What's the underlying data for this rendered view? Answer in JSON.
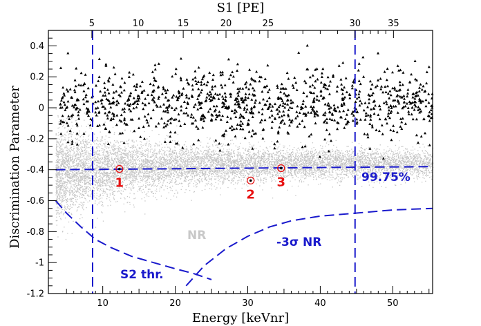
{
  "chart_data": {
    "type": "scatter",
    "xlabel": "Energy [keVnr]",
    "ylabel": "Discrimination Parameter",
    "top_axis_label": "S1 [PE]",
    "xlim": [
      2.5,
      55.5
    ],
    "ylim": [
      -1.2,
      0.5
    ],
    "x_ticks": [
      10,
      20,
      30,
      40,
      50
    ],
    "x_tick_labels": [
      "10",
      "20",
      "30",
      "40",
      "50"
    ],
    "y_ticks": [
      -1.2,
      -1,
      -0.8,
      -0.6,
      -0.4,
      -0.2,
      0,
      0.2,
      0.4
    ],
    "y_tick_labels": [
      "-1.2",
      "-1",
      "-0.8",
      "-0.6",
      "-0.4",
      "-0.2",
      "0",
      "0.2",
      "0.4"
    ],
    "top_ticks_pe": [
      5,
      10,
      15,
      20,
      25,
      30,
      35
    ],
    "top_tick_labels": [
      "5",
      "10",
      "15",
      "20",
      "25",
      "30",
      "35"
    ],
    "top_axis_keVnr": [
      8.5,
      14.9,
      21.1,
      27.0,
      32.8,
      44.8,
      50.1
    ],
    "energy_threshold_lines_keVnr": [
      8.6,
      44.8
    ],
    "acceptance_line": {
      "label": "99.75%",
      "x": [
        3.5,
        55.5
      ],
      "y": [
        -0.4,
        -0.38
      ]
    },
    "s2_threshold_curve": {
      "label": "S2 thr.",
      "x": [
        3.5,
        5,
        7,
        9,
        11,
        14,
        17,
        20,
        22.5,
        25
      ],
      "y": [
        -0.6,
        -0.68,
        -0.77,
        -0.85,
        -0.9,
        -0.96,
        -1.0,
        -1.04,
        -1.07,
        -1.11
      ]
    },
    "nr_minus3sigma_curve": {
      "label": "-3σ NR",
      "x": [
        21.5,
        24,
        27,
        30,
        33,
        36,
        40,
        45,
        50,
        55.5
      ],
      "y": [
        -1.15,
        -1.02,
        -0.91,
        -0.83,
        -0.77,
        -0.73,
        -0.7,
        -0.68,
        -0.66,
        -0.65
      ]
    },
    "nr_band_label": "NR",
    "candidate_events": {
      "labels": [
        "1",
        "2",
        "3"
      ],
      "x": [
        12.3,
        30.4,
        34.6
      ],
      "y": [
        -0.395,
        -0.47,
        -0.39
      ]
    },
    "er_events_count": 1100,
    "nr_band_points_count": 9000,
    "colors": {
      "axes": "#000000",
      "er_events": "#000000",
      "nr_band": "#c4c4c4",
      "lines": "#1a1acc",
      "candidates": "#e81010"
    }
  }
}
